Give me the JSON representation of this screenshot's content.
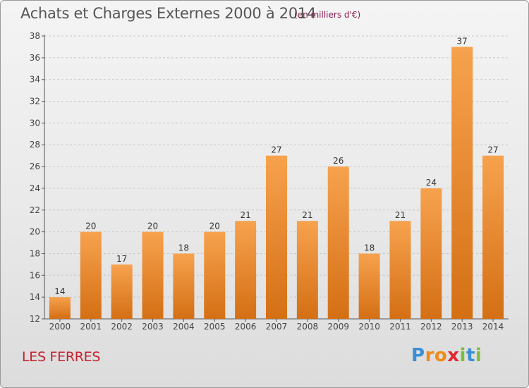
{
  "title": "Achats et Charges Externes 2000 à 2014",
  "subtitle": "(en milliers d'€)",
  "commune": "LES FERRES",
  "logo": {
    "letters": [
      "P",
      "r",
      "o",
      "x",
      "i",
      "t",
      "i"
    ],
    "colors": [
      "#3a8fd6",
      "#f08a1a",
      "#f08a1a",
      "#e2262e",
      "#7cbf3b",
      "#3a8fd6",
      "#7cbf3b"
    ]
  },
  "colors": {
    "bar_light": "#f7a24e",
    "bar_dark": "#d46f14",
    "label": "#333333",
    "axis": "#555555"
  },
  "chart_data": {
    "type": "bar",
    "categories": [
      "2000",
      "2001",
      "2002",
      "2003",
      "2004",
      "2005",
      "2006",
      "2007",
      "2008",
      "2009",
      "2010",
      "2011",
      "2012",
      "2013",
      "2014"
    ],
    "values": [
      14,
      20,
      17,
      20,
      18,
      20,
      21,
      27,
      21,
      26,
      18,
      21,
      24,
      37,
      27
    ],
    "data_labels": [
      "14",
      "20",
      "17",
      "20",
      "18",
      "20",
      "21",
      "27",
      "21",
      "26",
      "18",
      "21",
      "24",
      "37",
      "27"
    ],
    "ylim": [
      12,
      38
    ],
    "yticks": [
      "12",
      "14",
      "16",
      "18",
      "20",
      "22",
      "24",
      "26",
      "28",
      "30",
      "32",
      "34",
      "36",
      "38"
    ],
    "grid": true
  }
}
